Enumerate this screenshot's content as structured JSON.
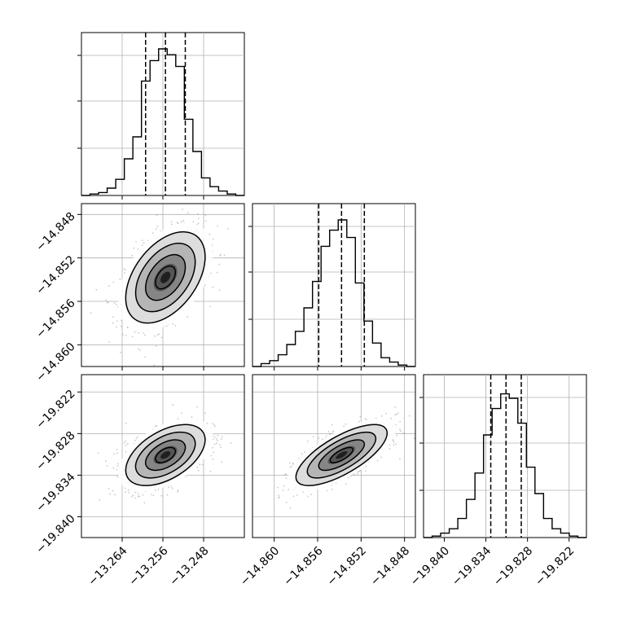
{
  "chart_data": {
    "type": "corner",
    "parameters": [
      {
        "range": [
          -13.272,
          -13.24
        ],
        "ticks": [
          -13.264,
          -13.256,
          -13.248
        ],
        "tick_labels": [
          "−13.264",
          "−13.256",
          "−13.248"
        ],
        "quantiles": [
          -13.2594,
          -13.2555,
          -13.2516
        ]
      },
      {
        "range": [
          -14.862,
          -14.847
        ],
        "ticks": [
          -14.86,
          -14.856,
          -14.852,
          -14.848
        ],
        "tick_labels": [
          "−14.860",
          "−14.856",
          "−14.852",
          "−14.848"
        ],
        "quantiles": [
          -14.8559,
          -14.8538,
          -14.8517
        ]
      },
      {
        "range": [
          -19.843,
          -19.8195
        ],
        "ticks": [
          -19.84,
          -19.834,
          -19.828,
          -19.822
        ],
        "tick_labels": [
          "−19.840",
          "−19.834",
          "−19.828",
          "−19.822"
        ],
        "quantiles": [
          -19.8333,
          -19.8311,
          -19.8289
        ]
      }
    ],
    "histograms": [
      [
        0,
        0.01,
        0.02,
        0.05,
        0.11,
        0.25,
        0.4,
        0.78,
        0.92,
        1.0,
        0.96,
        0.88,
        0.52,
        0.3,
        0.12,
        0.06,
        0.03,
        0.01,
        0
      ],
      [
        0,
        0.02,
        0.04,
        0.08,
        0.15,
        0.24,
        0.4,
        0.58,
        0.82,
        0.93,
        1.0,
        0.88,
        0.57,
        0.31,
        0.16,
        0.06,
        0.03,
        0.01,
        0
      ],
      [
        0,
        0.01,
        0.03,
        0.06,
        0.13,
        0.26,
        0.44,
        0.7,
        0.88,
        0.98,
        0.95,
        0.78,
        0.48,
        0.3,
        0.13,
        0.06,
        0.03,
        0.01,
        0
      ]
    ],
    "pairs": [
      {
        "x": 0,
        "y": 1,
        "center": [
          -13.2555,
          -14.8538
        ],
        "sigma": [
          0.0039,
          0.0021
        ],
        "rho": 0.45
      },
      {
        "x": 0,
        "y": 2,
        "center": [
          -13.2555,
          -19.8311
        ],
        "sigma": [
          0.0039,
          0.0022
        ],
        "rho": 0.5
      },
      {
        "x": 1,
        "y": 2,
        "center": [
          -14.8538,
          -19.8311
        ],
        "sigma": [
          0.0021,
          0.0022
        ],
        "rho": 0.72
      }
    ],
    "contour_levels": [
      0.5,
      1.0,
      1.5,
      2.0
    ],
    "grid": true,
    "colors": {
      "line": "#000000",
      "grid": "#b0b0b0",
      "points": "#888888"
    }
  }
}
